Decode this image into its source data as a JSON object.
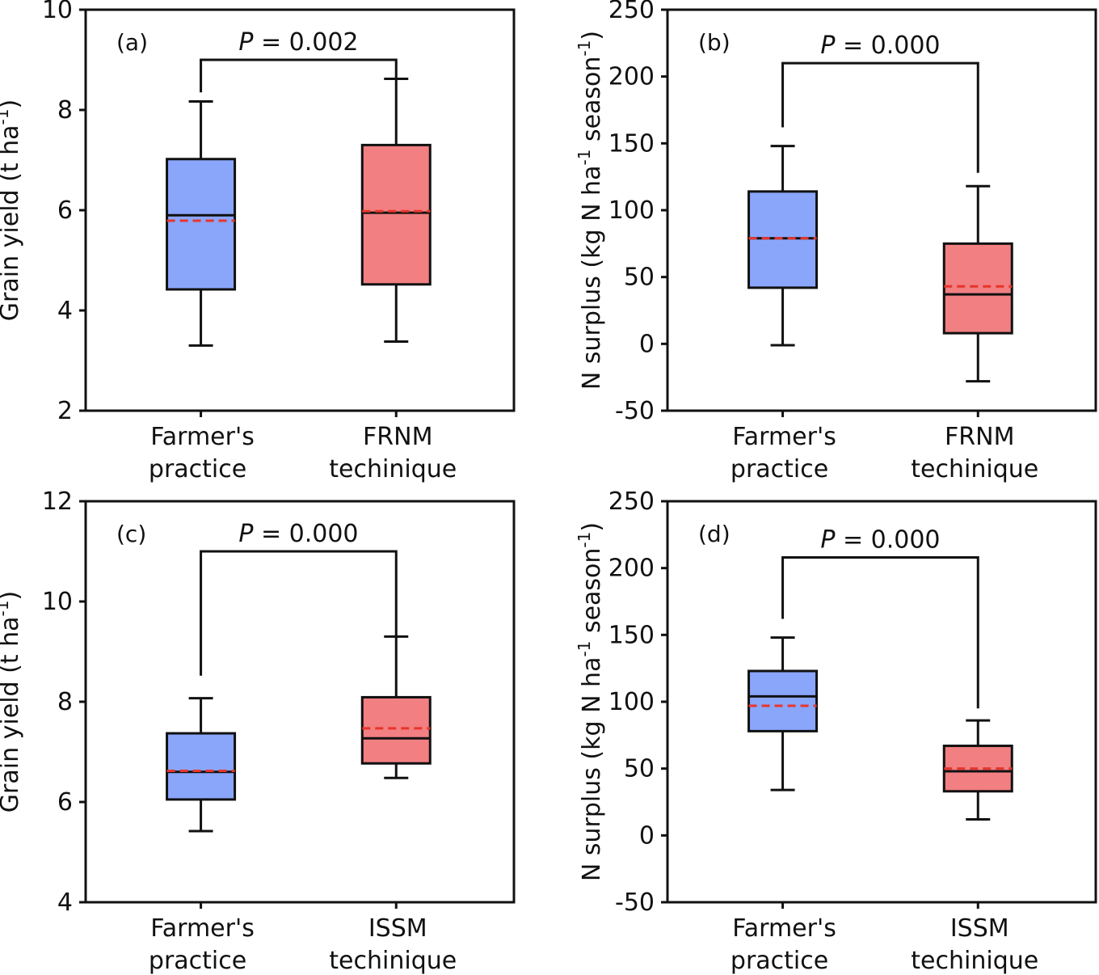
{
  "colors": {
    "box_a": "#8aa6fb",
    "box_b": "#f27f82",
    "median": "#111111",
    "mean": "#e8352b",
    "axis": "#111111"
  },
  "chart_data": [
    {
      "type": "box",
      "panel_label": "(a)",
      "p_prefix": "P",
      "p_suffix": " = 0.002",
      "ylabel_main": "Grain yield (t ha",
      "ylabel_sup": "-1",
      "ylabel_tail": ")",
      "ylim": [
        2,
        10
      ],
      "yticks": [
        2,
        4,
        6,
        8,
        10
      ],
      "categories": [
        {
          "line1": "Farmer's",
          "line2": "practice"
        },
        {
          "line1": "FRNM",
          "line2": "techinique"
        }
      ],
      "boxes": [
        {
          "whisker_low": 3.3,
          "q1": 4.42,
          "median": 5.9,
          "mean": 5.79,
          "q3": 7.02,
          "whisker_high": 8.17,
          "color": "box_a"
        },
        {
          "whisker_low": 3.38,
          "q1": 4.52,
          "median": 5.95,
          "mean": 5.98,
          "q3": 7.3,
          "whisker_high": 8.62,
          "color": "box_b"
        }
      ],
      "bracket_y": 9.0,
      "bracket_end": [
        8.35,
        8.62
      ]
    },
    {
      "type": "box",
      "panel_label": "(b)",
      "p_prefix": "P",
      "p_suffix": " = 0.000",
      "ylabel_main": "N surplus (kg N ha",
      "ylabel_sup": "-1",
      "ylabel_tail": " season",
      "ylabel_sup2": "-1",
      "ylabel_tail2": ")",
      "ylim": [
        -50,
        250
      ],
      "yticks": [
        -50,
        0,
        50,
        100,
        150,
        200,
        250
      ],
      "categories": [
        {
          "line1": "Farmer's",
          "line2": "practice"
        },
        {
          "line1": "FRNM",
          "line2": "techinique"
        }
      ],
      "boxes": [
        {
          "whisker_low": -1,
          "q1": 42,
          "median": 79,
          "mean": 79,
          "q3": 114,
          "whisker_high": 148,
          "color": "box_a"
        },
        {
          "whisker_low": -28,
          "q1": 8,
          "median": 37,
          "mean": 43,
          "q3": 75,
          "whisker_high": 118,
          "color": "box_b"
        }
      ],
      "bracket_y": 210,
      "bracket_end": [
        162,
        128
      ]
    },
    {
      "type": "box",
      "panel_label": "(c)",
      "p_prefix": "P",
      "p_suffix": " = 0.000",
      "ylabel_main": "Grain yield (t ha",
      "ylabel_sup": "-1",
      "ylabel_tail": ")",
      "ylim": [
        4,
        12
      ],
      "yticks": [
        4,
        6,
        8,
        10,
        12
      ],
      "categories": [
        {
          "line1": "Farmer's",
          "line2": "practice"
        },
        {
          "line1": "ISSM",
          "line2": "techinique"
        }
      ],
      "boxes": [
        {
          "whisker_low": 5.42,
          "q1": 6.05,
          "median": 6.6,
          "mean": 6.62,
          "q3": 7.37,
          "whisker_high": 8.07,
          "color": "box_a"
        },
        {
          "whisker_low": 6.48,
          "q1": 6.77,
          "median": 7.27,
          "mean": 7.47,
          "q3": 8.09,
          "whisker_high": 9.3,
          "color": "box_b"
        }
      ],
      "bracket_y": 11.0,
      "bracket_end": [
        8.52,
        9.3
      ]
    },
    {
      "type": "box",
      "panel_label": "(d)",
      "p_prefix": "P",
      "p_suffix": " = 0.000",
      "ylabel_main": "N surplus (kg N ha",
      "ylabel_sup": "-1",
      "ylabel_tail": " season",
      "ylabel_sup2": "-1",
      "ylabel_tail2": ")",
      "ylim": [
        -50,
        250
      ],
      "yticks": [
        -50,
        0,
        50,
        100,
        150,
        200,
        250
      ],
      "categories": [
        {
          "line1": "Farmer's",
          "line2": "practice"
        },
        {
          "line1": "ISSM",
          "line2": "techinique"
        }
      ],
      "boxes": [
        {
          "whisker_low": 34,
          "q1": 78,
          "median": 104,
          "mean": 97,
          "q3": 123,
          "whisker_high": 148,
          "color": "box_a"
        },
        {
          "whisker_low": 12,
          "q1": 33,
          "median": 48,
          "mean": 50,
          "q3": 67,
          "whisker_high": 86,
          "color": "box_b"
        }
      ],
      "bracket_y": 208,
      "bracket_end": [
        162,
        95
      ]
    }
  ]
}
